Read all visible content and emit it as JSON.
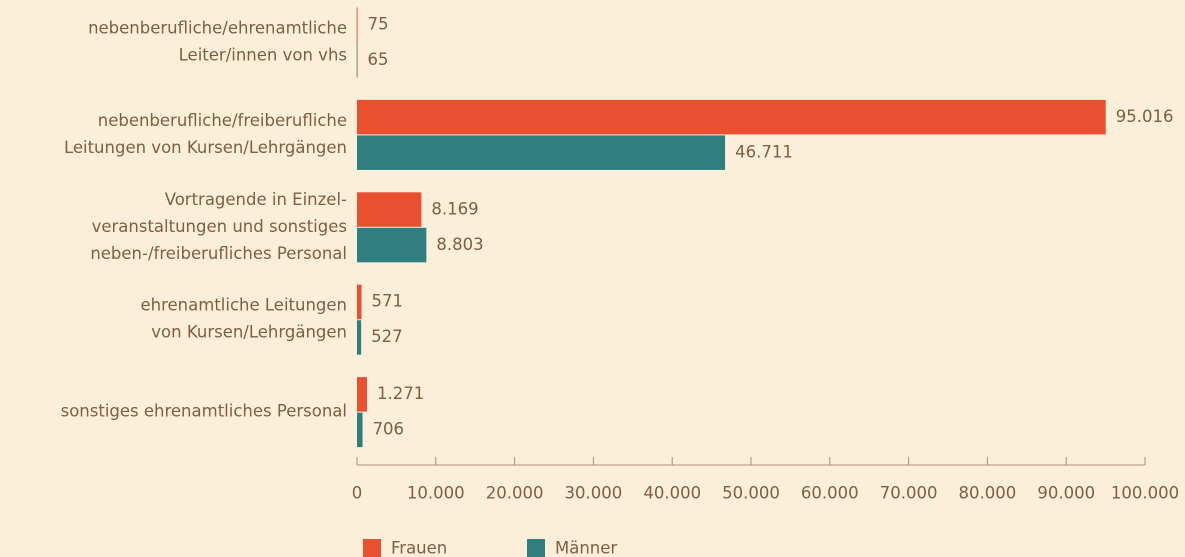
{
  "chart_data": {
    "type": "barh",
    "categories": [
      [
        "nebenberufliche/ehrenamtliche",
        "Leiter/innen von vhs"
      ],
      [
        "nebenberufliche/freiberufliche",
        "Leitungen von Kursen/Lehrgängen"
      ],
      [
        "Vortragende in Einzel-",
        "veranstaltungen und sonstiges",
        "neben-/freiberufliches Personal"
      ],
      [
        "ehrenamtliche Leitungen",
        "von Kursen/Lehrgängen"
      ],
      [
        "sonstiges ehrenamtliches Personal"
      ]
    ],
    "series": [
      {
        "name": "Frauen",
        "color": "#e8502f",
        "values": [
          75,
          95016,
          8169,
          571,
          1271
        ],
        "value_labels": [
          "75",
          "95.016",
          "8.169",
          "571",
          "1.271"
        ]
      },
      {
        "name": "Männer",
        "color": "#2f7e80",
        "values": [
          65,
          46711,
          8803,
          527,
          706
        ],
        "value_labels": [
          "65",
          "46.711",
          "8.803",
          "527",
          "706"
        ]
      }
    ],
    "xlim": [
      0,
      100000
    ],
    "xticks": [
      0,
      {
        "value": 10000,
        "label": "10.000"
      },
      {
        "value": 20000,
        "label": "20.000"
      },
      {
        "value": 30000,
        "label": "30.000"
      },
      {
        "value": 40000,
        "label": "40.000"
      },
      {
        "value": 50000,
        "label": "50.000"
      },
      {
        "value": 60000,
        "label": "60.000"
      },
      {
        "value": 70000,
        "label": "70.000"
      },
      {
        "value": 80000,
        "label": "80.000"
      },
      {
        "value": 90000,
        "label": "90.000"
      },
      {
        "value": 100000,
        "label": "100.000"
      }
    ],
    "legend": "bottom"
  }
}
